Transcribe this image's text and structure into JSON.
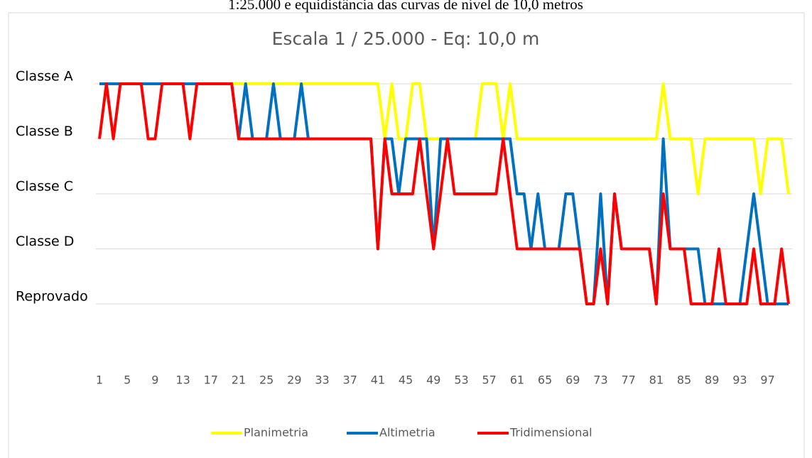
{
  "caption": "1:25.000 e equidistância das curvas de nível de 10,0 metros",
  "chart_data": {
    "type": "line",
    "title": "Escala 1 / 25.000 - Eq: 10,0 m",
    "categories": [
      1,
      null,
      null,
      null,
      5,
      null,
      null,
      null,
      9,
      null,
      null,
      null,
      13,
      null,
      null,
      null,
      17,
      null,
      null,
      null,
      21,
      null,
      null,
      null,
      25,
      null,
      null,
      null,
      29,
      null,
      null,
      null,
      33,
      null,
      null,
      null,
      37,
      null,
      null,
      null,
      41,
      null,
      null,
      null,
      45,
      null,
      null,
      null,
      49,
      null,
      null,
      null,
      53,
      null,
      null,
      null,
      57,
      null,
      null,
      null,
      61,
      null,
      null,
      null,
      65,
      null,
      null,
      null,
      69,
      null,
      null,
      null,
      73,
      null,
      null,
      null,
      77,
      null,
      null,
      null,
      81,
      null,
      null,
      null,
      85,
      null,
      null,
      null,
      89,
      null,
      null,
      null,
      93,
      null,
      null,
      null,
      97,
      null,
      null,
      null
    ],
    "series": [
      {
        "name": "Planimetria",
        "color": "#ffff00",
        "values": [
          5,
          5,
          5,
          5,
          5,
          5,
          5,
          5,
          5,
          5,
          5,
          5,
          5,
          5,
          5,
          5,
          5,
          5,
          5,
          5,
          5,
          5,
          5,
          5,
          5,
          5,
          5,
          5,
          5,
          5,
          5,
          5,
          5,
          5,
          5,
          5,
          5,
          5,
          5,
          5,
          5,
          4,
          5,
          4,
          4,
          5,
          5,
          4,
          4,
          4,
          4,
          4,
          4,
          4,
          4,
          5,
          5,
          5,
          4,
          5,
          4,
          4,
          4,
          4,
          4,
          4,
          4,
          4,
          4,
          4,
          4,
          4,
          4,
          4,
          4,
          4,
          4,
          4,
          4,
          4,
          4,
          5,
          4,
          4,
          4,
          4,
          3,
          4,
          4,
          4,
          4,
          4,
          4,
          4,
          4,
          3,
          4,
          4,
          4,
          3
        ]
      },
      {
        "name": "Altimetria",
        "color": "#0070c0",
        "values": [
          5,
          5,
          5,
          5,
          5,
          5,
          5,
          5,
          5,
          5,
          5,
          5,
          5,
          5,
          5,
          5,
          5,
          5,
          5,
          5,
          4,
          5,
          4,
          4,
          4,
          5,
          4,
          4,
          4,
          5,
          4,
          4,
          4,
          4,
          4,
          4,
          4,
          4,
          4,
          4,
          2,
          4,
          4,
          3,
          4,
          4,
          4,
          4,
          2,
          4,
          4,
          4,
          4,
          4,
          4,
          4,
          4,
          4,
          4,
          4,
          3,
          3,
          2,
          3,
          2,
          2,
          2,
          3,
          3,
          2,
          1,
          1,
          3,
          1,
          3,
          2,
          2,
          2,
          2,
          2,
          1,
          4,
          2,
          2,
          2,
          2,
          2,
          1,
          1,
          1,
          1,
          1,
          1,
          2,
          3,
          2,
          1,
          1,
          1,
          1
        ]
      },
      {
        "name": "Tridimensional",
        "color": "#ff0000",
        "values": [
          4,
          5,
          4,
          5,
          5,
          5,
          5,
          4,
          4,
          5,
          5,
          5,
          5,
          4,
          5,
          5,
          5,
          5,
          5,
          5,
          4,
          4,
          4,
          4,
          4,
          4,
          4,
          4,
          4,
          4,
          4,
          4,
          4,
          4,
          4,
          4,
          4,
          4,
          4,
          4,
          2,
          4,
          3,
          3,
          3,
          3,
          4,
          3,
          2,
          3,
          4,
          3,
          3,
          3,
          3,
          3,
          3,
          3,
          4,
          3,
          2,
          2,
          2,
          2,
          2,
          2,
          2,
          2,
          2,
          2,
          1,
          1,
          2,
          1,
          3,
          2,
          2,
          2,
          2,
          2,
          1,
          3,
          2,
          2,
          2,
          1,
          1,
          1,
          1,
          2,
          1,
          1,
          1,
          1,
          2,
          1,
          1,
          1,
          2,
          1
        ]
      }
    ],
    "ylim": [
      0,
      5
    ],
    "yticks": [
      {
        "value": 5,
        "label": "Classe A"
      },
      {
        "value": 4,
        "label": "Classe B"
      },
      {
        "value": 3,
        "label": "Classe C"
      },
      {
        "value": 2,
        "label": "Classe D"
      },
      {
        "value": 1,
        "label": "Reprovado"
      }
    ],
    "grid": true,
    "legend": "bottom"
  }
}
